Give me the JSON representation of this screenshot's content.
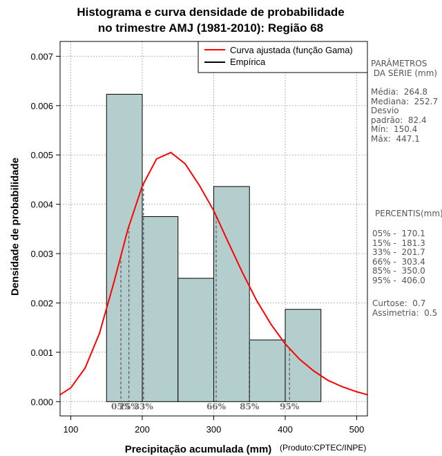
{
  "chart_data": {
    "type": "bar",
    "title_line1": "Histograma e curva densidade de probabilidade",
    "title_line2": "no trimestre AMJ (1981-2010): Região 68",
    "xlabel": "Precipitação acumulada (mm)",
    "ylabel": "Densidade de probabilidade",
    "credit": "(Produto:CPTEC/INPE)",
    "xlim": [
      85,
      515
    ],
    "ylim": [
      -0.00029,
      0.0073
    ],
    "x_ticks": [
      100,
      200,
      300,
      400,
      500
    ],
    "y_ticks": [
      0.0,
      0.001,
      0.002,
      0.003,
      0.004,
      0.005,
      0.006,
      0.007
    ],
    "y_tick_labels": [
      "0.000",
      "0.001",
      "0.002",
      "0.003",
      "0.004",
      "0.005",
      "0.006",
      "0.007"
    ],
    "grid": true,
    "bins": [
      {
        "x0": 150,
        "x1": 200,
        "density": 0.00623
      },
      {
        "x0": 200,
        "x1": 250,
        "density": 0.00375
      },
      {
        "x0": 250,
        "x1": 300,
        "density": 0.0025
      },
      {
        "x0": 300,
        "x1": 350,
        "density": 0.00436
      },
      {
        "x0": 350,
        "x1": 400,
        "density": 0.00125
      },
      {
        "x0": 400,
        "x1": 450,
        "density": 0.00187
      }
    ],
    "bar_color": "#b4cdcd",
    "curve_color": "#ff0000",
    "curve": {
      "name": "Curva ajustada (função Gama)",
      "x": [
        85,
        100,
        120,
        140,
        160,
        180,
        200,
        220,
        240,
        260,
        280,
        300,
        320,
        340,
        360,
        380,
        400,
        420,
        440,
        460,
        480,
        500,
        515
      ],
      "y": [
        0.00014,
        0.00028,
        0.00068,
        0.00138,
        0.0024,
        0.0035,
        0.00437,
        0.00492,
        0.00505,
        0.00482,
        0.00438,
        0.00387,
        0.00324,
        0.00262,
        0.00205,
        0.00157,
        0.00117,
        0.00086,
        0.00062,
        0.00043,
        0.0003,
        0.0002,
        0.00014
      ]
    },
    "legend": {
      "placement": "top-right",
      "entries": [
        {
          "label": "Curva ajustada (função Gama)",
          "color": "#ff0000"
        },
        {
          "label": "Empírica",
          "color": "#000000"
        }
      ]
    },
    "percentile_lines": [
      {
        "label": "05%",
        "x": 170.1
      },
      {
        "label": "15%",
        "x": 181.3
      },
      {
        "label": "33%",
        "x": 201.7
      },
      {
        "label": "66%",
        "x": 303.4
      },
      {
        "label": "85%",
        "x": 350.0
      },
      {
        "label": "95%",
        "x": 406.0
      }
    ]
  },
  "side_panel": {
    "params_header": "PARÂMETROS\n DA SÉRIE (mm)",
    "params": "Média:  264.8\nMediana:  252.7\nDesvio\npadrão:  82.4\nMín:  150.4\nMáx:  447.1",
    "percentis_header": "PERCENTIS(mm)",
    "percentis": "05% -  170.1\n15% -  181.3\n33% -  201.7\n66% -  303.4\n85% -  350.0\n95% -  406.0",
    "stats": "Curtose:  0.7\nAssimetria:  0.5"
  }
}
